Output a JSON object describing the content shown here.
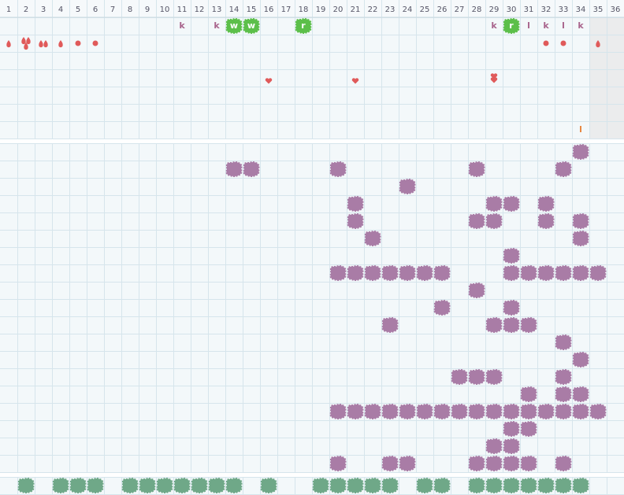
{
  "header": {
    "columns": [
      1,
      2,
      3,
      4,
      5,
      6,
      7,
      8,
      9,
      10,
      11,
      12,
      13,
      14,
      15,
      16,
      17,
      18,
      19,
      20,
      21,
      22,
      23,
      24,
      25,
      26,
      27,
      28,
      29,
      30,
      31,
      32,
      33,
      34,
      35,
      36
    ]
  },
  "top": {
    "letters": [
      {
        "row": 0,
        "col": 11,
        "text": "k",
        "color": "#a8648c"
      },
      {
        "row": 0,
        "col": 13,
        "text": "k",
        "color": "#a8648c"
      },
      {
        "row": 0,
        "col": 14,
        "text": "w",
        "color": "#5cbf4a",
        "badge": true
      },
      {
        "row": 0,
        "col": 15,
        "text": "w",
        "color": "#5cbf4a",
        "badge": true
      },
      {
        "row": 0,
        "col": 18,
        "text": "r",
        "color": "#5cbf4a",
        "badge": true
      },
      {
        "row": 0,
        "col": 29,
        "text": "k",
        "color": "#a8648c"
      },
      {
        "row": 0,
        "col": 30,
        "text": "r",
        "color": "#5cbf4a",
        "badge": true
      },
      {
        "row": 0,
        "col": 31,
        "text": "l",
        "color": "#a8648c"
      },
      {
        "row": 0,
        "col": 32,
        "text": "k",
        "color": "#a8648c"
      },
      {
        "row": 0,
        "col": 33,
        "text": "l",
        "color": "#a8648c"
      },
      {
        "row": 0,
        "col": 34,
        "text": "k",
        "color": "#a8648c"
      },
      {
        "row": 6,
        "col": 34,
        "text": "l",
        "color": "#e8843c"
      }
    ]
  },
  "grid": {
    "color": "#a97ca6",
    "rows": [
      [
        34
      ],
      [
        14,
        15,
        20,
        28,
        33
      ],
      [
        24
      ],
      [
        21,
        29,
        30,
        32
      ],
      [
        21,
        28,
        29,
        32,
        34
      ],
      [
        22,
        34
      ],
      [
        30
      ],
      [
        20,
        21,
        22,
        23,
        24,
        25,
        26,
        30,
        31,
        32,
        33,
        34,
        35
      ],
      [
        28
      ],
      [
        26,
        30
      ],
      [
        23,
        29,
        30,
        31
      ],
      [
        33
      ],
      [
        34
      ],
      [
        27,
        28,
        29,
        33
      ],
      [
        31,
        33,
        34
      ],
      [
        20,
        21,
        22,
        23,
        24,
        25,
        26,
        27,
        28,
        29,
        30,
        31,
        32,
        33,
        34,
        35
      ],
      [
        30,
        31
      ],
      [
        29,
        30
      ],
      [
        20,
        23,
        24,
        28,
        29,
        30,
        31,
        33
      ]
    ]
  },
  "footer": {
    "color": "#6fa888",
    "cols": [
      2,
      4,
      5,
      6,
      8,
      9,
      10,
      11,
      12,
      13,
      14,
      16,
      19,
      20,
      21,
      22,
      23,
      25,
      26,
      28,
      29,
      30,
      31,
      32,
      33,
      34
    ]
  }
}
